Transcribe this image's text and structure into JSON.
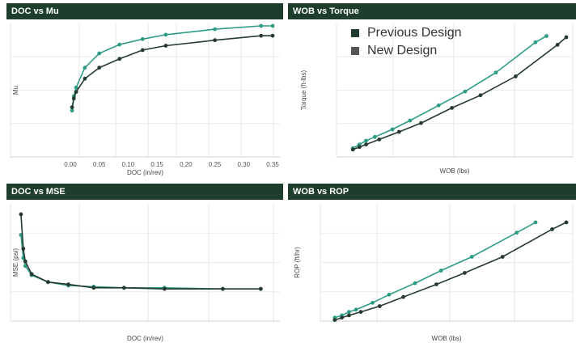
{
  "colors": {
    "header_bg": "#1e3d2d",
    "previous": "#2e9b86",
    "new": "#263a31"
  },
  "legend": [
    {
      "label": "Previous Design",
      "color": "#1e3d2d"
    },
    {
      "label": "New Design",
      "color": "#555555"
    }
  ],
  "chart_data": [
    {
      "type": "line",
      "title": "DOC vs Mu",
      "xlabel": "DOC (in/rev)",
      "ylabel": "Mu",
      "xlim": [
        -0.1,
        0.36
      ],
      "ylim": [
        0,
        1
      ],
      "xticks": [
        "0.00",
        "0.05",
        "0.10",
        "0.15",
        "0.20",
        "0.25",
        "0.30",
        "0.35"
      ],
      "series": [
        {
          "name": "Previous Design",
          "x": [
            0.003,
            0.006,
            0.01,
            0.025,
            0.05,
            0.085,
            0.125,
            0.165,
            0.25,
            0.33,
            0.35
          ],
          "y": [
            0.23,
            0.36,
            0.44,
            0.62,
            0.75,
            0.83,
            0.88,
            0.92,
            0.97,
            1.0,
            1.0
          ]
        },
        {
          "name": "New Design",
          "x": [
            0.003,
            0.006,
            0.01,
            0.025,
            0.05,
            0.085,
            0.125,
            0.165,
            0.25,
            0.33,
            0.35
          ],
          "y": [
            0.26,
            0.34,
            0.4,
            0.52,
            0.62,
            0.7,
            0.78,
            0.82,
            0.87,
            0.91,
            0.91
          ]
        }
      ]
    },
    {
      "type": "line",
      "title": "WOB vs Torque",
      "xlabel": "WOB (lbs)",
      "ylabel": "Torque (ft-lbs)",
      "xlim": [
        0,
        1
      ],
      "ylim": [
        0,
        1
      ],
      "xticks": [],
      "series": [
        {
          "name": "Previous Design",
          "x": [
            0.03,
            0.06,
            0.09,
            0.13,
            0.21,
            0.29,
            0.42,
            0.54,
            0.68,
            0.86,
            0.91
          ],
          "y": [
            0.03,
            0.06,
            0.09,
            0.12,
            0.18,
            0.25,
            0.37,
            0.48,
            0.63,
            0.87,
            0.92
          ]
        },
        {
          "name": "New Design",
          "x": [
            0.03,
            0.06,
            0.09,
            0.15,
            0.24,
            0.34,
            0.48,
            0.61,
            0.77,
            0.96,
            1.0
          ],
          "y": [
            0.02,
            0.04,
            0.06,
            0.1,
            0.16,
            0.23,
            0.35,
            0.45,
            0.6,
            0.85,
            0.91
          ]
        }
      ]
    },
    {
      "type": "line",
      "title": "DOC vs MSE",
      "xlabel": "DOC (in/rev)",
      "ylabel": "MSE (psi)",
      "xlim": [
        0,
        1
      ],
      "ylim": [
        0,
        1
      ],
      "xticks": [],
      "series": [
        {
          "name": "Previous Design",
          "x": [
            0.003,
            0.012,
            0.02,
            0.045,
            0.11,
            0.19,
            0.29,
            0.41,
            0.57,
            0.8,
            0.95
          ],
          "y": [
            0.75,
            0.55,
            0.48,
            0.4,
            0.34,
            0.31,
            0.3,
            0.29,
            0.29,
            0.28,
            0.28
          ]
        },
        {
          "name": "New Design",
          "x": [
            0.003,
            0.012,
            0.02,
            0.045,
            0.11,
            0.19,
            0.29,
            0.41,
            0.57,
            0.8,
            0.95
          ],
          "y": [
            0.93,
            0.63,
            0.52,
            0.41,
            0.34,
            0.32,
            0.29,
            0.29,
            0.28,
            0.28,
            0.28
          ]
        }
      ]
    },
    {
      "type": "line",
      "title": "WOB vs ROP",
      "xlabel": "WOB (lbs)",
      "ylabel": "ROP (ft/hr)",
      "xlim": [
        0,
        1
      ],
      "ylim": [
        0,
        1
      ],
      "xticks": [],
      "series": [
        {
          "name": "Previous Design",
          "x": [
            0.02,
            0.05,
            0.08,
            0.11,
            0.18,
            0.25,
            0.36,
            0.47,
            0.6,
            0.79,
            0.87
          ],
          "y": [
            0.03,
            0.05,
            0.08,
            0.1,
            0.16,
            0.23,
            0.33,
            0.44,
            0.56,
            0.77,
            0.86
          ]
        },
        {
          "name": "New Design",
          "x": [
            0.02,
            0.05,
            0.08,
            0.13,
            0.21,
            0.31,
            0.45,
            0.57,
            0.73,
            0.94,
            1.0
          ],
          "y": [
            0.01,
            0.03,
            0.05,
            0.08,
            0.13,
            0.21,
            0.32,
            0.42,
            0.56,
            0.8,
            0.86
          ]
        }
      ]
    }
  ]
}
